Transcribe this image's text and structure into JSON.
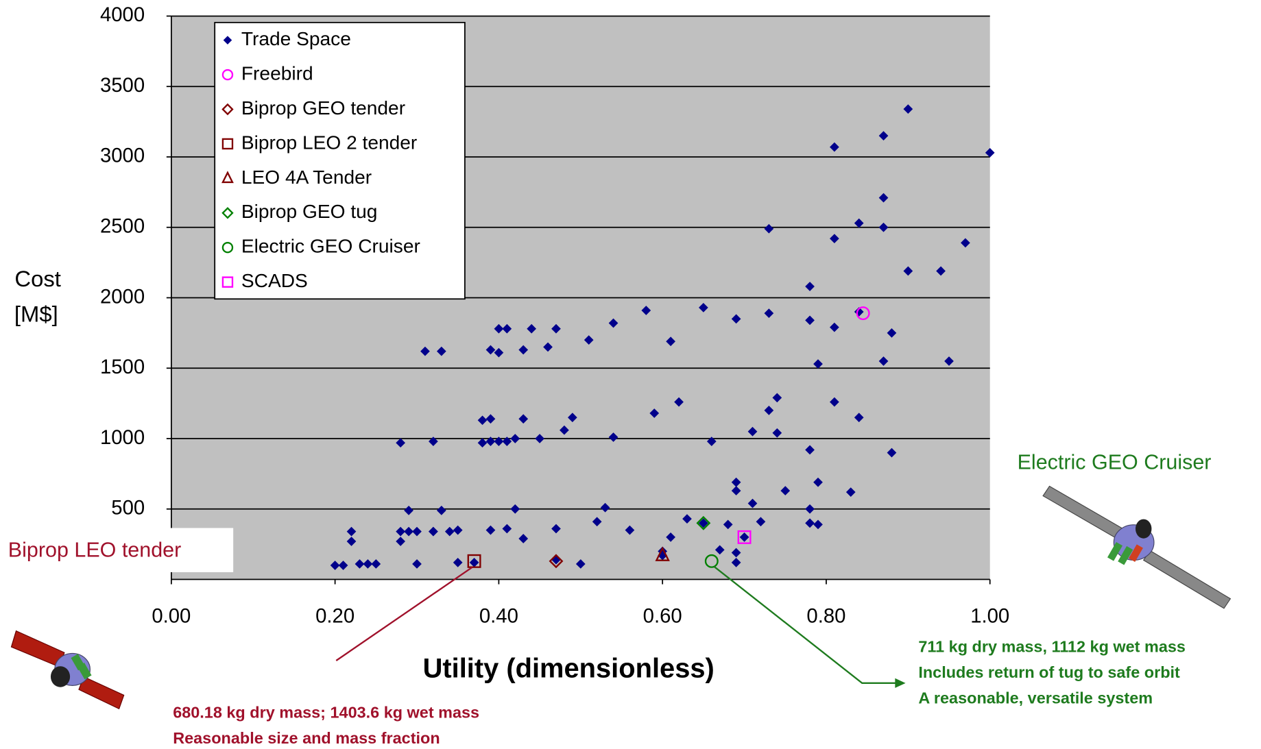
{
  "chart_data": {
    "type": "scatter",
    "x_label": "Utility (dimensionless)",
    "y_label": [
      "Cost",
      "[M$]"
    ],
    "xlim": [
      0,
      1
    ],
    "ylim": [
      0,
      4000
    ],
    "xticks": [
      {
        "value": 0,
        "label": "0.00"
      },
      {
        "value": 0.2,
        "label": "0.20"
      },
      {
        "value": 0.4,
        "label": "0.40"
      },
      {
        "value": 0.6,
        "label": "0.60"
      },
      {
        "value": 0.8,
        "label": "0.80"
      },
      {
        "value": 1,
        "label": "1.00"
      }
    ],
    "yticks": [
      500,
      1000,
      1500,
      2000,
      2500,
      3000,
      3500,
      4000
    ],
    "grid": true,
    "legend": "top-left",
    "series": [
      {
        "name": "Trade Space",
        "color": "#00008b",
        "marker": "diamond",
        "filled": true,
        "x": [
          0.2,
          0.21,
          0.22,
          0.22,
          0.23,
          0.24,
          0.25,
          0.28,
          0.28,
          0.28,
          0.29,
          0.29,
          0.3,
          0.3,
          0.31,
          0.32,
          0.32,
          0.32,
          0.33,
          0.33,
          0.34,
          0.35,
          0.35,
          0.37,
          0.38,
          0.38,
          0.39,
          0.39,
          0.39,
          0.39,
          0.4,
          0.4,
          0.4,
          0.41,
          0.41,
          0.41,
          0.42,
          0.42,
          0.43,
          0.43,
          0.43,
          0.44,
          0.45,
          0.46,
          0.47,
          0.47,
          0.48,
          0.49,
          0.5,
          0.51,
          0.52,
          0.53,
          0.54,
          0.54,
          0.56,
          0.58,
          0.59,
          0.6,
          0.61,
          0.61,
          0.62,
          0.63,
          0.65,
          0.66,
          0.67,
          0.68,
          0.69,
          0.69,
          0.69,
          0.69,
          0.69,
          0.71,
          0.71,
          0.72,
          0.73,
          0.73,
          0.73,
          0.74,
          0.74,
          0.75,
          0.78,
          0.78,
          0.78,
          0.78,
          0.78,
          0.79,
          0.79,
          0.79,
          0.81,
          0.81,
          0.81,
          0.81,
          0.83,
          0.84,
          0.84,
          0.87,
          0.87,
          0.87,
          0.87,
          0.88,
          0.88,
          0.9,
          0.9,
          0.94,
          0.95,
          0.97,
          1.0,
          0.47,
          0.6,
          0.65,
          0.7,
          0.84
        ],
        "values": [
          100,
          100,
          270,
          340,
          110,
          110,
          110,
          270,
          340,
          970,
          340,
          490,
          340,
          110,
          1620,
          340,
          980,
          340,
          490,
          1620,
          340,
          350,
          120,
          120,
          970,
          1130,
          1630,
          350,
          1140,
          980,
          980,
          1610,
          1780,
          360,
          980,
          1780,
          500,
          1000,
          1630,
          290,
          1140,
          1780,
          1000,
          1650,
          360,
          1780,
          1060,
          1150,
          110,
          1700,
          410,
          510,
          1010,
          1820,
          350,
          1910,
          1180,
          200,
          300,
          1690,
          1260,
          430,
          1930,
          980,
          210,
          390,
          630,
          690,
          190,
          1850,
          120,
          540,
          1050,
          410,
          1890,
          1200,
          2490,
          1290,
          1040,
          630,
          2080,
          1840,
          920,
          500,
          400,
          390,
          1530,
          690,
          2420,
          1790,
          3070,
          1260,
          620,
          2530,
          1150,
          1550,
          2710,
          3150,
          2500,
          1750,
          900,
          3340,
          2190,
          2190,
          1550,
          2390,
          3030,
          140,
          170,
          400,
          300,
          1900
        ]
      },
      {
        "name": "Freebird",
        "color": "#ff00ff",
        "marker": "circle",
        "filled": false,
        "x": [
          0.845
        ],
        "values": [
          1890
        ]
      },
      {
        "name": "Biprop GEO tender",
        "color": "#800000",
        "marker": "diamond",
        "filled": false,
        "x": [
          0.47
        ],
        "values": [
          130
        ]
      },
      {
        "name": "Biprop LEO 2 tender",
        "color": "#800000",
        "marker": "square",
        "filled": false,
        "x": [
          0.37
        ],
        "values": [
          130
        ]
      },
      {
        "name": "LEO 4A Tender",
        "color": "#800000",
        "marker": "triangle",
        "filled": false,
        "x": [
          0.6
        ],
        "values": [
          170
        ]
      },
      {
        "name": "Biprop GEO tug",
        "color": "#008000",
        "marker": "diamond",
        "filled": false,
        "x": [
          0.65
        ],
        "values": [
          400
        ]
      },
      {
        "name": "Electric GEO Cruiser",
        "color": "#008000",
        "marker": "circle",
        "filled": false,
        "x": [
          0.66
        ],
        "values": [
          130
        ]
      },
      {
        "name": "SCADS",
        "color": "#ff00ff",
        "marker": "square",
        "filled": false,
        "x": [
          0.7
        ],
        "values": [
          300
        ]
      }
    ],
    "annotations": [
      {
        "title": "Biprop LEO tender",
        "color": "#a0112b",
        "lines": [
          "680.18 kg dry mass; 1403.6 kg wet mass",
          "Reasonable size and mass fraction"
        ]
      },
      {
        "title": "Electric GEO Cruiser",
        "color": "#1e7b1e",
        "lines": [
          "711 kg dry mass, 1112 kg wet mass",
          "Includes return of tug to safe orbit",
          "A reasonable, versatile system"
        ]
      }
    ]
  }
}
